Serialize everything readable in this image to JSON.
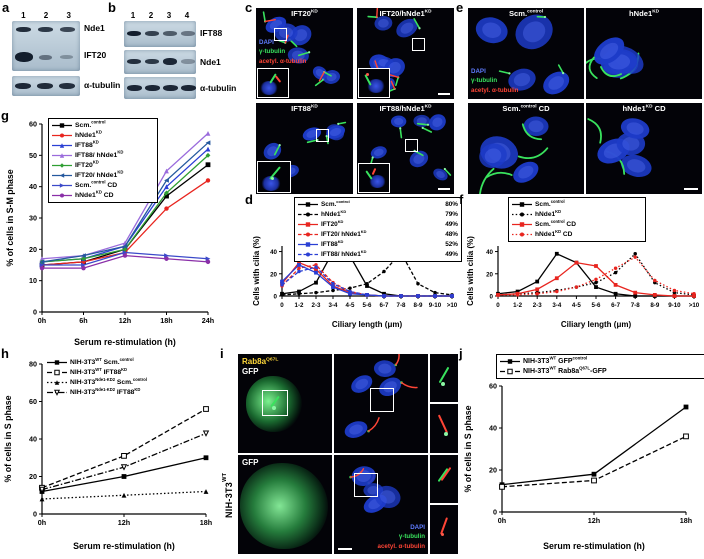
{
  "panel_letters": {
    "a": "a",
    "b": "b",
    "c": "c",
    "d": "d",
    "e": "e",
    "f": "f",
    "g": "g",
    "h": "h",
    "i": "i",
    "j": "j"
  },
  "colors": {
    "dapi_blue": "#5f7cff",
    "gamma_tubulin_green": "#39e25d",
    "acetyl_tubulin_red": "#ff4536",
    "chart_red": "#e8251f",
    "chart_blue": "#2a3fd4",
    "chart_violet": "#9a6bdc",
    "chart_green": "#2f9e33",
    "chart_navy": "#24589e",
    "chart_cd_blue": "#3b49c9",
    "chart_purple": "#8a2fa8"
  },
  "blots": {
    "a": {
      "lanes": [
        "1",
        "2",
        "3"
      ],
      "labels": [
        "Nde1",
        "IFT20",
        "α-tubulin"
      ]
    },
    "b": {
      "lanes": [
        "1",
        "2",
        "3",
        "4"
      ],
      "labels": [
        "IFT88",
        "Nde1",
        "α-tubulin"
      ]
    }
  },
  "stains": [
    {
      "label": "DAPI",
      "color": "#5f7cff"
    },
    {
      "label": "γ-tubulin",
      "color": "#39e25d"
    },
    {
      "label": "acetyl. α-tubulin",
      "color": "#ff4536"
    }
  ],
  "micro_c": {
    "titles": [
      "IFT20^{KD}",
      "IFT20/hNde1^{KD}",
      "IFT88^{KD}",
      "IFT88/hNde1^{KD}"
    ]
  },
  "micro_e": {
    "titles": [
      "Scm.^{control}",
      "hNde1^{KD}",
      "Scm.^{control} CD",
      "hNde1^{KD} CD"
    ]
  },
  "panel_i": {
    "cell_line": "NIH-3T3^{WT}",
    "rab8a_label": "Rab8a^{Q67L}",
    "gfp_label": "GFP",
    "gfp_label_2": "GFP"
  },
  "chart_data": [
    {
      "id": "g",
      "type": "line",
      "categories": [
        "0h",
        "6h",
        "12h",
        "18h",
        "24h"
      ],
      "xlabel": "Serum re-stimulation (h)",
      "ylabel": "% of cells in S-M phase",
      "ylim": [
        0,
        60
      ],
      "yticks": [
        0,
        10,
        20,
        30,
        40,
        50,
        60
      ],
      "legend_position": "top-left",
      "series": [
        {
          "name": "Scm.^{control}",
          "color": "#000000",
          "dash": "",
          "marker": "square",
          "values": [
            15,
            16,
            20,
            37,
            47
          ]
        },
        {
          "name": "hNde1^{KD}",
          "color": "#e8251f",
          "dash": "",
          "marker": "circle",
          "values": [
            15,
            16,
            19,
            33,
            42
          ]
        },
        {
          "name": "IFT88^{KD}",
          "color": "#2a3fd4",
          "dash": "",
          "marker": "triangle-up",
          "values": [
            16,
            17,
            21,
            40,
            52
          ]
        },
        {
          "name": "IFT88/ hNde1^{KD}",
          "color": "#9a6bdc",
          "dash": "",
          "marker": "triangle-up",
          "values": [
            17,
            18,
            22,
            45,
            57
          ]
        },
        {
          "name": "IFT20^{KD}",
          "color": "#2f9e33",
          "dash": "",
          "marker": "diamond",
          "values": [
            16,
            17,
            20,
            38,
            50
          ]
        },
        {
          "name": "IFT20/ hNde1^{KD}",
          "color": "#24589e",
          "dash": "",
          "marker": "triangle-left",
          "values": [
            16,
            18,
            21,
            42,
            54
          ]
        },
        {
          "name": "Scm.^{control} CD",
          "color": "#3b49c9",
          "dash": "",
          "marker": "triangle-right",
          "values": [
            15,
            15,
            19,
            18,
            17
          ]
        },
        {
          "name": "hNde1^{KD} CD",
          "color": "#8a2fa8",
          "dash": "",
          "marker": "circle",
          "values": [
            14,
            14,
            18,
            17,
            16
          ]
        }
      ]
    },
    {
      "id": "d",
      "type": "line",
      "categories": [
        "0",
        "1-2",
        "2-3",
        "3-4",
        "4-5",
        "5-6",
        "6-7",
        "7-8",
        "8-9",
        "9-10",
        ">10"
      ],
      "xlabel": "Ciliary length (μm)",
      "ylabel": "Cells with cilia (%)",
      "ylim": [
        0,
        45
      ],
      "yticks": [
        0,
        20,
        40
      ],
      "legend_position": "top",
      "series": [
        {
          "name": "Scm.^{control}",
          "pct": "80%",
          "color": "#000000",
          "dash": "",
          "marker": "square",
          "values": [
            2,
            4,
            12,
            40,
            36,
            9,
            2,
            0,
            0,
            0,
            0
          ]
        },
        {
          "name": "hNde1^{KD}",
          "pct": "79%",
          "color": "#000000",
          "dash": "3.5,2",
          "marker": "circle",
          "values": [
            1,
            2,
            3,
            5,
            7,
            11,
            22,
            39,
            11,
            3,
            1
          ]
        },
        {
          "name": "IFT20^{KD}",
          "pct": "49%",
          "color": "#e8251f",
          "dash": "",
          "marker": "square",
          "values": [
            11,
            30,
            24,
            9,
            3,
            1,
            0,
            0,
            0,
            0,
            0
          ]
        },
        {
          "name": "IFT20/ hNde1^{KD}",
          "pct": "48%",
          "color": "#e8251f",
          "dash": "3.5,2",
          "marker": "circle",
          "values": [
            9,
            25,
            28,
            12,
            4,
            1,
            0,
            0,
            0,
            0,
            0
          ]
        },
        {
          "name": "IFT88^{KD}",
          "pct": "52%",
          "color": "#2a3fd4",
          "dash": "",
          "marker": "square",
          "values": [
            13,
            28,
            21,
            8,
            2,
            1,
            0,
            0,
            0,
            0,
            0
          ]
        },
        {
          "name": "IFT88/ hNde1^{KD}",
          "pct": "49%",
          "color": "#2a3fd4",
          "dash": "3.5,2",
          "marker": "circle",
          "values": [
            10,
            22,
            26,
            11,
            4,
            1,
            0,
            0,
            0,
            0,
            0
          ]
        }
      ]
    },
    {
      "id": "f",
      "type": "line",
      "categories": [
        "0",
        "1-2",
        "2-3",
        "3-4",
        "4-5",
        "5-6",
        "6-7",
        "7-8",
        "8-9",
        "9-10",
        ">10"
      ],
      "xlabel": "Ciliary length (μm)",
      "ylabel": "Cells with cilia (%)",
      "ylim": [
        0,
        45
      ],
      "yticks": [
        0,
        20,
        40
      ],
      "legend_position": "top",
      "series": [
        {
          "name": "Scm.^{control}",
          "color": "#000000",
          "dash": "",
          "marker": "square",
          "values": [
            2,
            4,
            13,
            38,
            30,
            8,
            2,
            0,
            0,
            0,
            0
          ]
        },
        {
          "name": "hNde1^{KD}",
          "color": "#000000",
          "dash": "1.5,2.2",
          "marker": "circle",
          "values": [
            1,
            2,
            3,
            5,
            8,
            12,
            21,
            38,
            12,
            3,
            1
          ]
        },
        {
          "name": "Scm.^{control} CD",
          "color": "#e8251f",
          "dash": "",
          "marker": "square",
          "values": [
            1,
            2,
            6,
            16,
            30,
            27,
            10,
            3,
            1,
            0,
            0
          ]
        },
        {
          "name": "hNde1^{KD} CD",
          "color": "#e8251f",
          "dash": "1.5,2.2",
          "marker": "circle",
          "values": [
            1,
            1,
            2,
            4,
            8,
            15,
            25,
            35,
            14,
            5,
            2
          ]
        }
      ]
    },
    {
      "id": "h",
      "type": "line",
      "categories": [
        "0h",
        "12h",
        "18h"
      ],
      "xlabel": "Serum re-stimulation (h)",
      "ylabel": "% of cells in S phase",
      "ylim": [
        0,
        80
      ],
      "yticks": [
        0,
        20,
        40,
        60,
        80
      ],
      "legend_position": "top-left",
      "series": [
        {
          "name": "NIH-3T3^{WT} Scm.^{control}",
          "color": "#000000",
          "dash": "",
          "marker": "square",
          "values": [
            12,
            20,
            30
          ]
        },
        {
          "name": "NIH-3T3^{WT} IFT88^{KD}",
          "color": "#000000",
          "dash": "5,2.5",
          "marker": "square-open",
          "values": [
            14,
            31,
            56
          ]
        },
        {
          "name": "NIH-3T3^{Nde1-KD2} Scm.^{control}",
          "color": "#000000",
          "dash": "1.5,2.2",
          "marker": "triangle-up",
          "values": [
            8,
            10,
            12
          ]
        },
        {
          "name": "NIH-3T3^{Nde1-KD2} IFT88^{KD}",
          "color": "#000000",
          "dash": "6,2,1.5,2",
          "marker": "triangle-down-open",
          "values": [
            13,
            25,
            43
          ]
        }
      ]
    },
    {
      "id": "j",
      "type": "line",
      "categories": [
        "0h",
        "12h",
        "18h"
      ],
      "xlabel": "Serum re-stimulation (h)",
      "ylabel": "% of cells in S phase",
      "ylim": [
        0,
        60
      ],
      "yticks": [
        0,
        20,
        40,
        60
      ],
      "legend_position": "top",
      "series": [
        {
          "name": "NIH-3T3^{WT} GFP^{control}",
          "color": "#000000",
          "dash": "",
          "marker": "square",
          "values": [
            13,
            18,
            50
          ]
        },
        {
          "name": "NIH-3T3^{WT} Rab8a^{Q67L}-GFP",
          "color": "#000000",
          "dash": "5,2.5",
          "marker": "square-open",
          "values": [
            12,
            15,
            36
          ]
        }
      ]
    }
  ]
}
